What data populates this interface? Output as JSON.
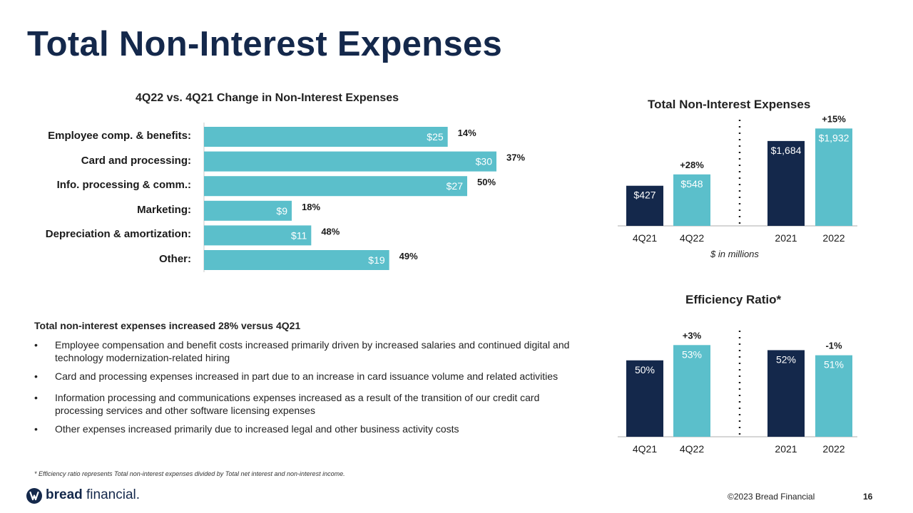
{
  "title": "Total Non-Interest Expenses",
  "colors": {
    "navy": "#14284b",
    "teal": "#5bbfcb",
    "title": "#14284b"
  },
  "chart_data": [
    {
      "id": "change",
      "type": "bar",
      "orientation": "horizontal",
      "title": "4Q22 vs. 4Q21 Change in Non-Interest Expenses",
      "categories": [
        "Employee comp. & benefits:",
        "Card and processing:",
        "Info. processing & comm.:",
        "Marketing:",
        "Depreciation & amortization:",
        "Other:"
      ],
      "values": [
        25,
        30,
        27,
        9,
        11,
        19
      ],
      "value_labels": [
        "$25",
        "$30",
        "$27",
        "$9",
        "$11",
        "$19"
      ],
      "pct_labels": [
        "14%",
        "37%",
        "50%",
        "18%",
        "48%",
        "49%"
      ],
      "xlim": [
        0,
        30
      ]
    },
    {
      "id": "expenses",
      "type": "bar",
      "title": "Total Non-Interest Expenses",
      "categories": [
        "4Q21",
        "4Q22",
        "2021",
        "2022"
      ],
      "values": [
        427,
        548,
        1684,
        1932
      ],
      "value_labels": [
        "$427",
        "$548",
        "$1,684",
        "$1,932"
      ],
      "series_colors": [
        "navy",
        "teal",
        "navy",
        "teal"
      ],
      "changes": [
        {
          "label": "+28%",
          "bar": 1
        },
        {
          "label": "+15%",
          "bar": 3
        }
      ],
      "units_note": "$ in millions",
      "quarter_scale_max": 1100,
      "annual_scale_max": 2050
    },
    {
      "id": "efficiency",
      "type": "bar",
      "title": "Efficiency Ratio*",
      "categories": [
        "4Q21",
        "4Q22",
        "2021",
        "2022"
      ],
      "values": [
        50,
        53,
        52,
        51
      ],
      "value_labels": [
        "50%",
        "53%",
        "52%",
        "51%"
      ],
      "series_colors": [
        "navy",
        "teal",
        "navy",
        "teal"
      ],
      "changes": [
        {
          "label": "+3%",
          "bar": 1
        },
        {
          "label": "-1%",
          "bar": 3
        }
      ],
      "ylim": [
        35,
        55
      ]
    }
  ],
  "summary": {
    "heading": "Total non-interest expenses increased 28% versus 4Q21",
    "bullets": [
      "Employee compensation and benefit costs increased primarily driven by increased salaries and continued digital and technology modernization-related hiring",
      "Card and processing expenses increased in part due to an increase in card issuance volume and related activities",
      "Information processing and communications expenses increased as a result of the transition of our credit card processing services and other software licensing expenses",
      "Other expenses increased primarily due to increased legal and other business activity costs"
    ]
  },
  "footnote": "* Efficiency ratio represents Total non-interest expenses divided by Total net interest and non-interest income.",
  "footer": {
    "brand_bold": "bread",
    "brand_rest": " financial.",
    "copyright": "©2023 Bread Financial",
    "page_number": "16"
  }
}
